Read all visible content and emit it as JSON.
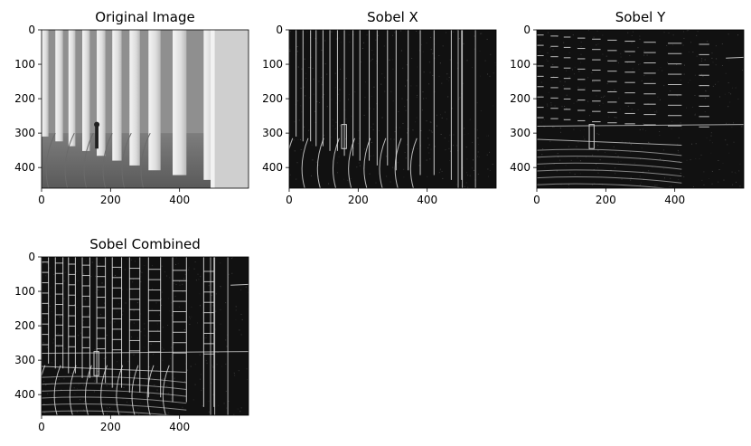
{
  "figure": {
    "panels": [
      {
        "title": "Original Image",
        "kind": "original"
      },
      {
        "title": "Sobel X",
        "kind": "sobel-x"
      },
      {
        "title": "Sobel Y",
        "kind": "sobel-y"
      },
      {
        "title": "Sobel Combined",
        "kind": "sobel-combined"
      }
    ]
  },
  "chart_data": [
    {
      "type": "image",
      "title": "Original Image",
      "xlim": [
        0,
        600
      ],
      "ylim": [
        460,
        0
      ],
      "xticks": [
        0,
        200,
        400
      ],
      "yticks": [
        0,
        100,
        200,
        300,
        400
      ],
      "colormap": "gray"
    },
    {
      "type": "image",
      "title": "Sobel X",
      "xlim": [
        0,
        600
      ],
      "ylim": [
        460,
        0
      ],
      "xticks": [
        0,
        200,
        400
      ],
      "yticks": [
        0,
        100,
        200,
        300,
        400
      ],
      "colormap": "gray"
    },
    {
      "type": "image",
      "title": "Sobel Y",
      "xlim": [
        0,
        600
      ],
      "ylim": [
        460,
        0
      ],
      "xticks": [
        0,
        200,
        400
      ],
      "yticks": [
        0,
        100,
        200,
        300,
        400
      ],
      "colormap": "gray"
    },
    {
      "type": "image",
      "title": "Sobel Combined",
      "xlim": [
        0,
        600
      ],
      "ylim": [
        460,
        0
      ],
      "xticks": [
        0,
        200,
        400
      ],
      "yticks": [
        0,
        100,
        200,
        300,
        400
      ],
      "colormap": "gray"
    }
  ]
}
